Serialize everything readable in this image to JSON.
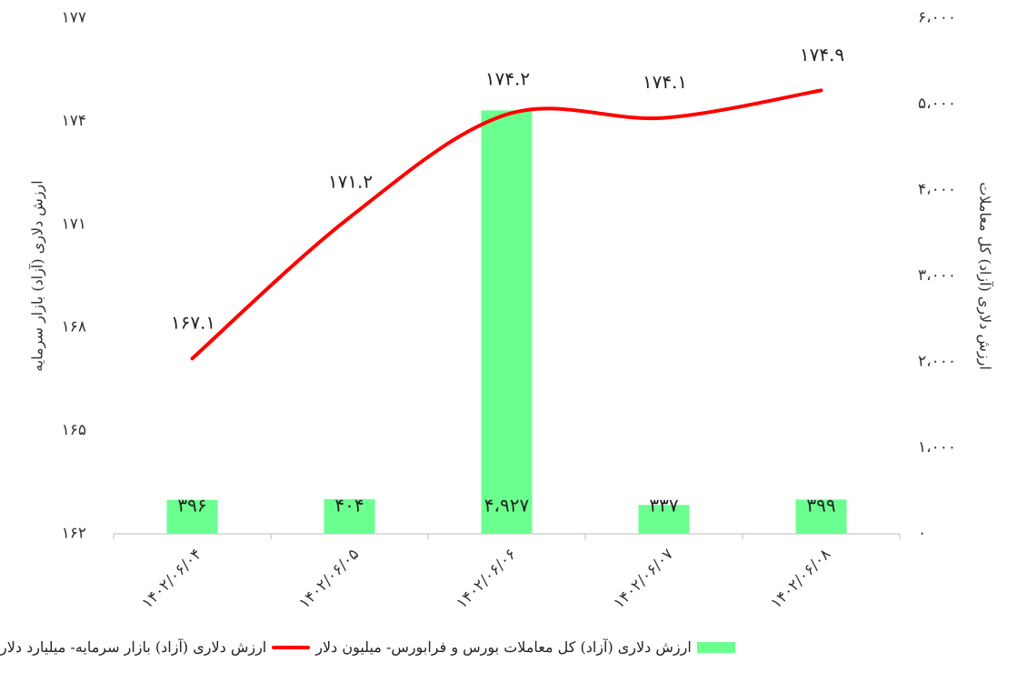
{
  "chart_data": {
    "type": "bar-line",
    "categories": [
      "۱۴۰۲/۰۶/۰۴",
      "۱۴۰۲/۰۶/۰۵",
      "۱۴۰۲/۰۶/۰۶",
      "۱۴۰۲/۰۶/۰۷",
      "۱۴۰۲/۰۶/۰۸"
    ],
    "ylabel": "ارزش دلاری (آزاد) بازار سرمایه",
    "y2label": "ارزش دلاری (آزاد) کل معاملات",
    "ylim": [
      162,
      177
    ],
    "yticks": [
      {
        "value": 162,
        "label": "۱۶۲"
      },
      {
        "value": 165,
        "label": "۱۶۵"
      },
      {
        "value": 168,
        "label": "۱۶۸"
      },
      {
        "value": 171,
        "label": "۱۷۱"
      },
      {
        "value": 174,
        "label": "۱۷۴"
      },
      {
        "value": 177,
        "label": "۱۷۷"
      }
    ],
    "y2lim": [
      0,
      6000
    ],
    "y2ticks": [
      {
        "value": 0,
        "label": "۰"
      },
      {
        "value": 1000,
        "label": "۱،۰۰۰"
      },
      {
        "value": 2000,
        "label": "۲،۰۰۰"
      },
      {
        "value": 3000,
        "label": "۳،۰۰۰"
      },
      {
        "value": 4000,
        "label": "۴،۰۰۰"
      },
      {
        "value": 5000,
        "label": "۵،۰۰۰"
      },
      {
        "value": 6000,
        "label": "۶،۰۰۰"
      }
    ],
    "series": [
      {
        "name": "ارزش دلاری (آزاد) کل معاملات بورس و فرابورس- میلیون دلار",
        "type": "bar",
        "axis": "y2",
        "color": "#6bff8f",
        "values": [
          396,
          404,
          4927,
          337,
          399
        ],
        "value_labels": [
          "۳۹۶",
          "۴۰۴",
          "۴،۹۲۷",
          "۳۳۷",
          "۳۹۹"
        ]
      },
      {
        "name": "ارزش دلاری (آزاد) بازار سرمایه- میلیارد دلار",
        "type": "line",
        "axis": "y",
        "color": "#ff0000",
        "values": [
          167.1,
          171.2,
          174.2,
          174.1,
          174.9
        ],
        "value_labels": [
          "۱۶۷.۱",
          "۱۷۱.۲",
          "۱۷۴.۲",
          "۱۷۴.۱",
          "۱۷۴.۹"
        ]
      }
    ]
  }
}
